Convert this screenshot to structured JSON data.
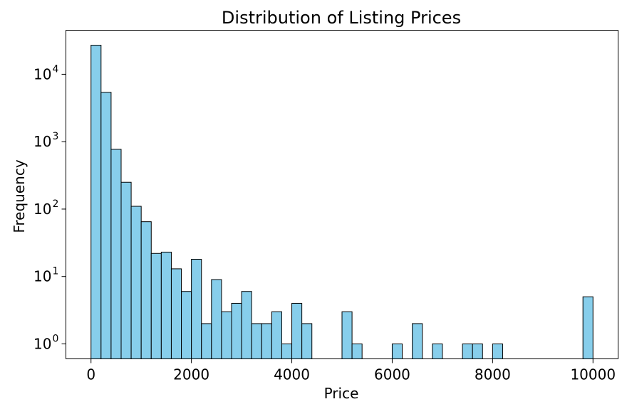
{
  "chart_data": {
    "type": "bar",
    "title": "Distribution of Listing Prices",
    "xlabel": "Price",
    "ylabel": "Frequency",
    "yscale": "log",
    "xlim": [
      -500,
      10500
    ],
    "ylim": [
      0.6,
      45000
    ],
    "grid": false,
    "bar_color": "#87ceeb",
    "edge_color": "#000000",
    "bin_width": 200,
    "x_ticks": [
      {
        "value": 0,
        "label": "0"
      },
      {
        "value": 2000,
        "label": "2000"
      },
      {
        "value": 4000,
        "label": "4000"
      },
      {
        "value": 6000,
        "label": "6000"
      },
      {
        "value": 8000,
        "label": "8000"
      },
      {
        "value": 10000,
        "label": "10000"
      }
    ],
    "y_ticks": [
      {
        "value": 1,
        "base": "10",
        "exp": "0"
      },
      {
        "value": 10,
        "base": "10",
        "exp": "1"
      },
      {
        "value": 100,
        "base": "10",
        "exp": "2"
      },
      {
        "value": 1000,
        "base": "10",
        "exp": "3"
      },
      {
        "value": 10000,
        "base": "10",
        "exp": "4"
      }
    ],
    "bins": [
      {
        "x0": 0,
        "x1": 200,
        "count": 27000
      },
      {
        "x0": 200,
        "x1": 400,
        "count": 5400
      },
      {
        "x0": 400,
        "x1": 600,
        "count": 770
      },
      {
        "x0": 600,
        "x1": 800,
        "count": 250
      },
      {
        "x0": 800,
        "x1": 1000,
        "count": 110
      },
      {
        "x0": 1000,
        "x1": 1200,
        "count": 65
      },
      {
        "x0": 1200,
        "x1": 1400,
        "count": 22
      },
      {
        "x0": 1400,
        "x1": 1600,
        "count": 23
      },
      {
        "x0": 1600,
        "x1": 1800,
        "count": 13
      },
      {
        "x0": 1800,
        "x1": 2000,
        "count": 6
      },
      {
        "x0": 2000,
        "x1": 2200,
        "count": 18
      },
      {
        "x0": 2200,
        "x1": 2400,
        "count": 2
      },
      {
        "x0": 2400,
        "x1": 2600,
        "count": 9
      },
      {
        "x0": 2600,
        "x1": 2800,
        "count": 3
      },
      {
        "x0": 2800,
        "x1": 3000,
        "count": 4
      },
      {
        "x0": 3000,
        "x1": 3200,
        "count": 6
      },
      {
        "x0": 3200,
        "x1": 3400,
        "count": 2
      },
      {
        "x0": 3400,
        "x1": 3600,
        "count": 2
      },
      {
        "x0": 3600,
        "x1": 3800,
        "count": 3
      },
      {
        "x0": 3800,
        "x1": 4000,
        "count": 1
      },
      {
        "x0": 4000,
        "x1": 4200,
        "count": 4
      },
      {
        "x0": 4200,
        "x1": 4400,
        "count": 2
      },
      {
        "x0": 5000,
        "x1": 5200,
        "count": 3
      },
      {
        "x0": 5200,
        "x1": 5400,
        "count": 1
      },
      {
        "x0": 6000,
        "x1": 6200,
        "count": 1
      },
      {
        "x0": 6400,
        "x1": 6600,
        "count": 2
      },
      {
        "x0": 6800,
        "x1": 7000,
        "count": 1
      },
      {
        "x0": 7400,
        "x1": 7600,
        "count": 1
      },
      {
        "x0": 7600,
        "x1": 7800,
        "count": 1
      },
      {
        "x0": 8000,
        "x1": 8200,
        "count": 1
      },
      {
        "x0": 9800,
        "x1": 10000,
        "count": 5
      }
    ]
  }
}
